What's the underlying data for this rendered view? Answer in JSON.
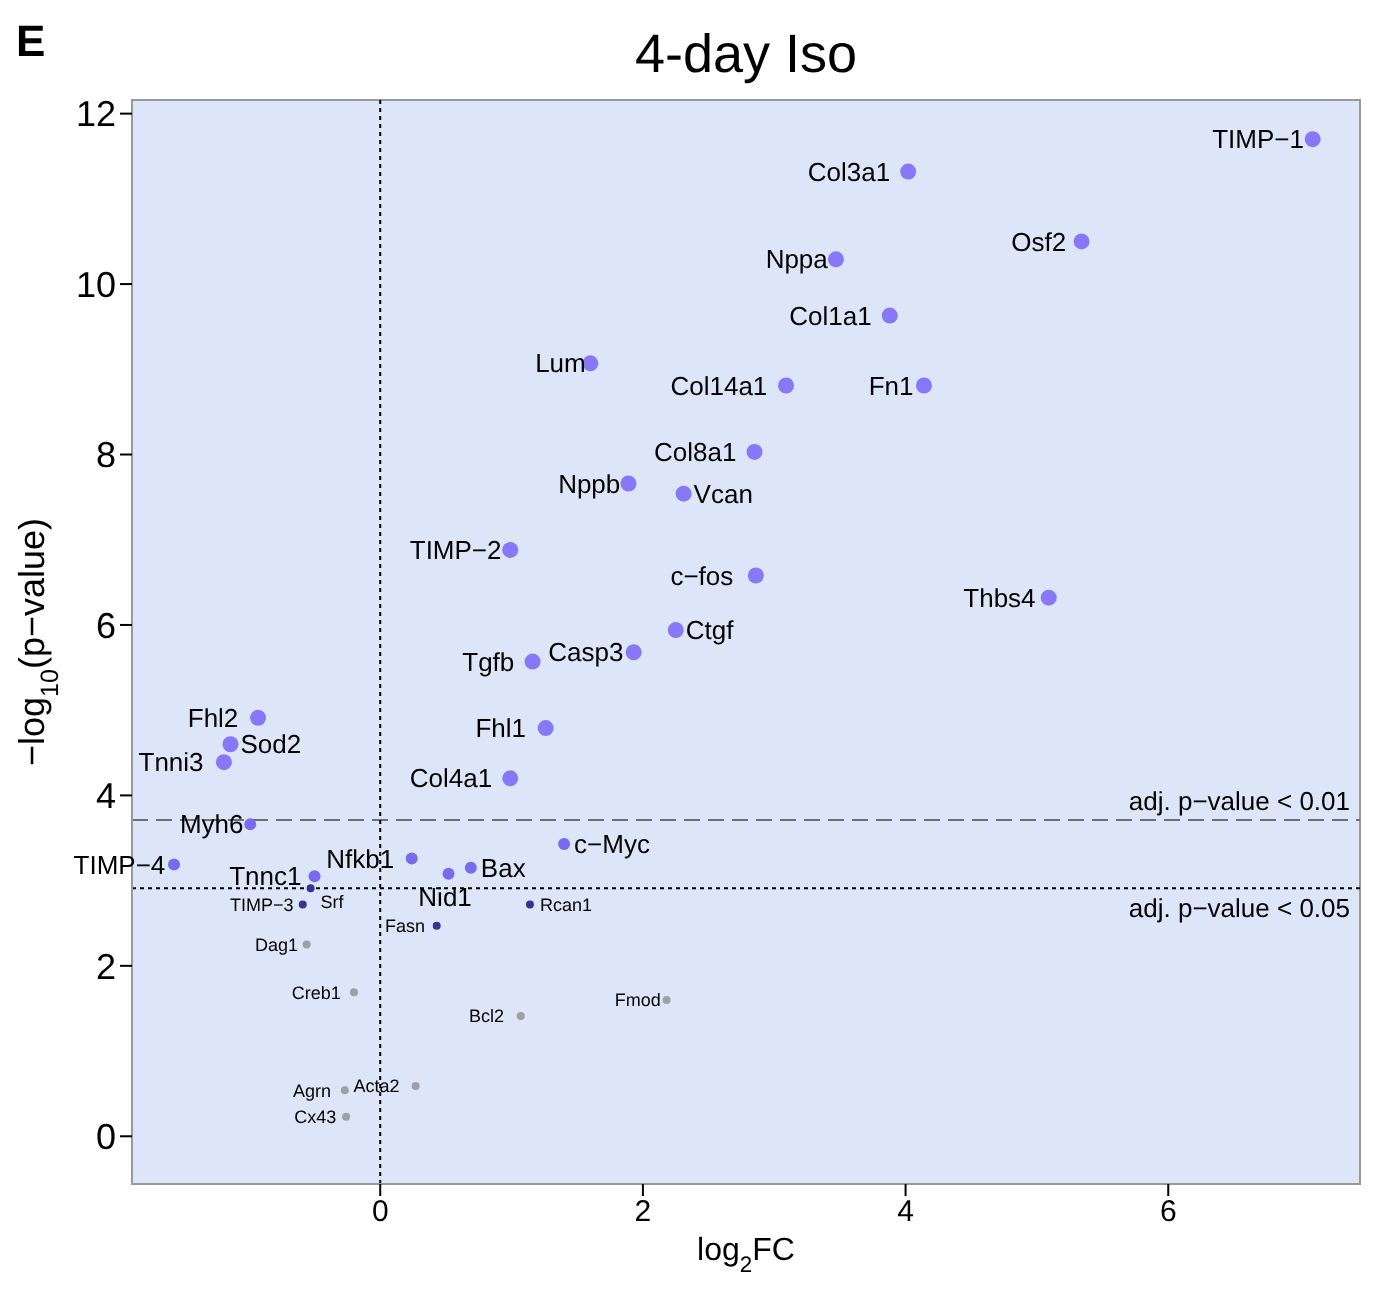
{
  "chart_data": {
    "type": "scatter",
    "title": "4-day Iso",
    "xlabel": "log$_{2}$FC",
    "ylabel": "−log$_{10}$(p−value)",
    "xlim": [
      -1.89,
      7.46
    ],
    "ylim": [
      -0.56,
      12.16
    ],
    "xticks": [
      0,
      2,
      4,
      6
    ],
    "yticks": [
      0,
      2,
      4,
      6,
      8,
      10,
      12
    ],
    "marker": "circle",
    "series": [
      {
        "color": "#8878f8",
        "x": [
          7.1,
          4.02,
          5.34,
          3.47,
          3.88,
          1.6,
          3.09,
          4.14,
          2.85,
          1.89,
          2.31,
          0.99,
          2.86,
          5.09,
          2.25,
          1.93,
          1.16,
          1.26,
          0.99,
          -0.93,
          -1.14,
          -1.19
        ],
        "values": [
          11.7,
          11.32,
          10.5,
          10.29,
          9.63,
          9.07,
          8.81,
          8.81,
          8.03,
          7.66,
          7.54,
          6.88,
          6.58,
          6.32,
          5.94,
          5.68,
          5.57,
          4.79,
          4.2,
          4.91,
          4.6,
          4.39
        ]
      },
      {
        "color": "#7a6af0",
        "x": [
          -0.99,
          -1.57,
          -0.5,
          0.24,
          0.52,
          0.69,
          1.4
        ],
        "values": [
          3.66,
          3.19,
          3.05,
          3.26,
          3.08,
          3.15,
          3.43
        ]
      },
      {
        "color": "#3c3090",
        "x": [
          -0.53,
          -0.59,
          1.14,
          0.43
        ],
        "values": [
          2.91,
          2.72,
          2.72,
          2.47
        ]
      },
      {
        "color": "#a0a0a0",
        "x": [
          -0.56,
          -0.2,
          1.07,
          2.18,
          -0.27,
          -0.26,
          0.27
        ],
        "values": [
          2.25,
          1.69,
          1.41,
          1.6,
          0.54,
          0.23,
          0.59
        ]
      }
    ],
    "ref_lines": [
      {
        "axis": "y",
        "value": 3.71,
        "label": "adj. p−value < 0.01",
        "line_style": "dashed",
        "color": "#707070"
      },
      {
        "axis": "y",
        "value": 2.91,
        "label": "adj. p−value < 0.05",
        "line_style": "dotted",
        "color": "#000000"
      },
      {
        "axis": "x",
        "value": 0,
        "line_style": "dotted",
        "color": "#000000"
      }
    ],
    "annotations": [
      "E",
      {
        "text": "TIMP−1",
        "x": 7.1,
        "y": 11.7
      },
      {
        "text": "Col3a1",
        "x": 4.02,
        "y": 11.32
      },
      {
        "text": "Osf2",
        "x": 5.34,
        "y": 10.5
      },
      {
        "text": "Nppa",
        "x": 3.47,
        "y": 10.29
      },
      {
        "text": "Col1a1",
        "x": 3.88,
        "y": 9.63
      },
      {
        "text": "Lum",
        "x": 1.6,
        "y": 9.07
      },
      {
        "text": "Col14a1",
        "x": 3.09,
        "y": 8.81
      },
      {
        "text": "Fn1",
        "x": 4.14,
        "y": 8.81
      },
      {
        "text": "Col8a1",
        "x": 2.85,
        "y": 8.03
      },
      {
        "text": "Nppb",
        "x": 1.89,
        "y": 7.66
      },
      {
        "text": "Vcan",
        "x": 2.31,
        "y": 7.54
      },
      {
        "text": "TIMP−2",
        "x": 0.99,
        "y": 6.88
      },
      {
        "text": "c−fos",
        "x": 2.86,
        "y": 6.58
      },
      {
        "text": "Thbs4",
        "x": 5.09,
        "y": 6.32
      },
      {
        "text": "Ctgf",
        "x": 2.25,
        "y": 5.94
      },
      {
        "text": "Casp3",
        "x": 1.93,
        "y": 5.68
      },
      {
        "text": "Tgfb",
        "x": 1.16,
        "y": 5.57
      },
      {
        "text": "Fhl1",
        "x": 1.26,
        "y": 4.79
      },
      {
        "text": "Col4a1",
        "x": 0.99,
        "y": 4.2
      },
      {
        "text": "Fhl2",
        "x": -0.93,
        "y": 4.91
      },
      {
        "text": "Sod2",
        "x": -1.14,
        "y": 4.6
      },
      {
        "text": "Tnni3",
        "x": -1.19,
        "y": 4.39
      },
      {
        "text": "Myh6",
        "x": -0.99,
        "y": 3.66
      },
      {
        "text": "TIMP−4",
        "x": -1.57,
        "y": 3.19
      },
      {
        "text": "Tnnc1",
        "x": -0.5,
        "y": 3.05
      },
      {
        "text": "Nfkb1",
        "x": 0.24,
        "y": 3.26
      },
      {
        "text": "Nid1",
        "x": 0.52,
        "y": 3.08
      },
      {
        "text": "Bax",
        "x": 0.69,
        "y": 3.15
      },
      {
        "text": "c−Myc",
        "x": 1.4,
        "y": 3.43
      },
      {
        "text": "Srf",
        "x": -0.53,
        "y": 2.91
      },
      {
        "text": "TIMP−3",
        "x": -0.59,
        "y": 2.72
      },
      {
        "text": "Rcan1",
        "x": 1.14,
        "y": 2.72
      },
      {
        "text": "Fasn",
        "x": 0.43,
        "y": 2.47
      },
      {
        "text": "Dag1",
        "x": -0.56,
        "y": 2.25
      },
      {
        "text": "Creb1",
        "x": -0.2,
        "y": 1.69
      },
      {
        "text": "Bcl2",
        "x": 1.07,
        "y": 1.41
      },
      {
        "text": "Fmod",
        "x": 2.18,
        "y": 1.6
      },
      {
        "text": "Agrn",
        "x": -0.27,
        "y": 0.54
      },
      {
        "text": "Cx43",
        "x": -0.26,
        "y": 0.23
      },
      {
        "text": "Acta2",
        "x": 0.27,
        "y": 0.59
      }
    ]
  }
}
